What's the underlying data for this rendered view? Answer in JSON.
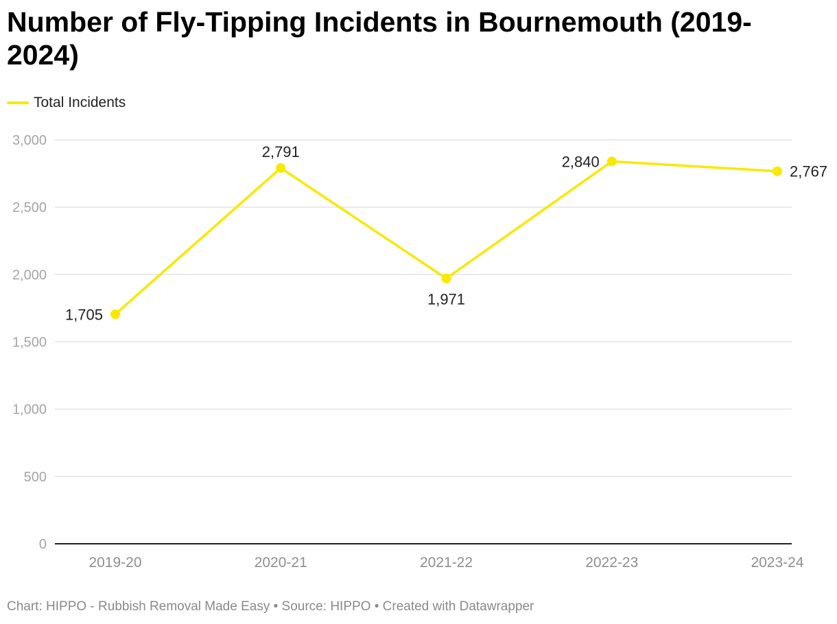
{
  "title": "Number of Fly-Tipping Incidents in Bournemouth (2019-2024)",
  "legend": {
    "label": "Total Incidents",
    "color": "#f7e900"
  },
  "footer": {
    "chart_label": "Chart:",
    "chart_source": "HIPPO - Rubbish Removal Made Easy",
    "source_label": "Source:",
    "source": "HIPPO",
    "created": "Created with Datawrapper",
    "separator": "•"
  },
  "colors": {
    "line": "#f7e900",
    "grid": "#e3e3e3",
    "axis": "#222222",
    "tick_text": "#a5a5a5",
    "value_text": "#222222"
  },
  "chart_data": {
    "type": "line",
    "title": "Number of Fly-Tipping Incidents in Bournemouth (2019-2024)",
    "xlabel": "",
    "ylabel": "",
    "categories": [
      "2019-20",
      "2020-21",
      "2021-22",
      "2022-23",
      "2023-24"
    ],
    "series": [
      {
        "name": "Total Incidents",
        "values": [
          1705,
          2791,
          1971,
          2840,
          2767
        ],
        "value_labels": [
          "1,705",
          "2,791",
          "1,971",
          "2,840",
          "2,767"
        ]
      }
    ],
    "ylim": [
      0,
      3000
    ],
    "yticks": [
      0,
      500,
      1000,
      1500,
      2000,
      2500,
      3000
    ],
    "ytick_labels": [
      "0",
      "500",
      "1,000",
      "1,500",
      "2,000",
      "2,500",
      "3,000"
    ],
    "grid": true,
    "legend_position": "top-left"
  }
}
